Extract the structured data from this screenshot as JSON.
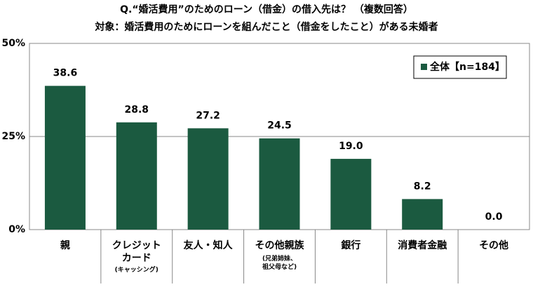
{
  "chart_data": {
    "type": "bar",
    "title": "Q.“婚活費用”のためのローン（借金）の借入先は？ （複数回答）",
    "subtitle": "対象：婚活費用のためにローンを組んだこと（借金をしたこと）がある未婚者",
    "categories": [
      "親",
      "クレジット\nカード",
      "友人・知人",
      "その他親族",
      "銀行",
      "消費者金融",
      "その他"
    ],
    "category_notes": [
      null,
      "(キャッシング)",
      null,
      "(兄弟姉妹、\n祖父母など)",
      null,
      null,
      null
    ],
    "series": [
      {
        "name": "全体【n=184】",
        "color": "#1b5a40",
        "values": [
          38.6,
          28.8,
          27.2,
          24.5,
          19.0,
          8.2,
          0.0
        ],
        "value_labels": [
          "38.6",
          "28.8",
          "27.2",
          "24.5",
          "19.0",
          "8.2",
          "0.0"
        ]
      }
    ],
    "ylim": [
      0,
      50
    ],
    "yticks": [
      {
        "value": 0,
        "label": "0%"
      },
      {
        "value": 25,
        "label": "25%"
      },
      {
        "value": 50,
        "label": "50%"
      }
    ],
    "grid": true,
    "legend": "upper right"
  }
}
